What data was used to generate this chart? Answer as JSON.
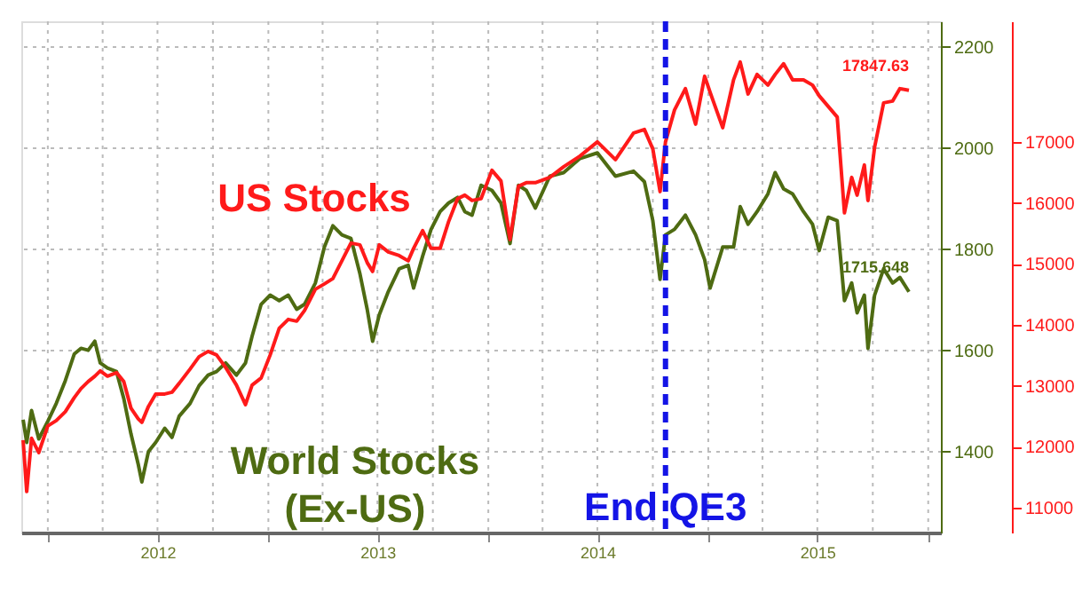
{
  "chart_data": {
    "type": "line",
    "legend": false,
    "grid": true,
    "line_style": "solid",
    "marker": "none",
    "x": [
      "2011-11-21",
      "2011-11-27",
      "2011-12-05",
      "2011-12-17",
      "2012-01-01",
      "2012-01-15",
      "2012-01-30",
      "2012-02-14",
      "2012-02-25",
      "2012-03-08",
      "2012-03-19",
      "2012-03-28",
      "2012-04-09",
      "2012-04-24",
      "2012-05-06",
      "2012-05-18",
      "2012-05-30",
      "2012-06-05",
      "2012-06-16",
      "2012-06-28",
      "2012-07-13",
      "2012-07-25",
      "2012-08-06",
      "2012-08-24",
      "2012-09-08",
      "2012-09-23",
      "2012-10-07",
      "2012-10-22",
      "2012-11-09",
      "2012-11-24",
      "2012-12-05",
      "2012-12-20",
      "2013-01-04",
      "2013-01-19",
      "2013-02-03",
      "2013-02-17",
      "2013-03-02",
      "2013-03-20",
      "2013-04-04",
      "2013-04-18",
      "2013-05-03",
      "2013-05-18",
      "2013-06-02",
      "2013-06-14",
      "2013-06-23",
      "2013-07-04",
      "2013-07-19",
      "2013-08-06",
      "2013-08-21",
      "2013-08-30",
      "2013-09-14",
      "2013-09-28",
      "2013-10-13",
      "2013-10-27",
      "2013-11-11",
      "2013-11-23",
      "2013-12-05",
      "2013-12-20",
      "2014-01-07",
      "2014-01-22",
      "2014-02-06",
      "2014-02-20",
      "2014-03-05",
      "2014-03-20",
      "2014-04-13",
      "2014-05-06",
      "2014-06-02",
      "2014-07-01",
      "2014-07-31",
      "2014-08-30",
      "2014-09-17",
      "2014-10-01",
      "2014-10-13",
      "2014-10-22",
      "2014-11-06",
      "2014-11-24",
      "2014-12-11",
      "2014-12-26",
      "2015-01-04",
      "2015-01-25",
      "2015-02-12",
      "2015-02-23",
      "2015-03-08",
      "2015-03-23",
      "2015-04-10",
      "2015-04-22",
      "2015-05-06",
      "2015-05-21",
      "2015-06-08",
      "2015-06-23",
      "2015-07-04",
      "2015-07-19",
      "2015-08-03",
      "2015-08-15",
      "2015-08-27",
      "2015-09-05",
      "2015-09-17",
      "2015-09-23",
      "2015-10-04",
      "2015-10-19",
      "2015-11-03",
      "2015-11-15",
      "2015-11-30"
    ],
    "series": [
      {
        "name": "World Stocks (Ex-US)",
        "color": "#4e6b12",
        "axis": "y",
        "values": [
          1463,
          1418,
          1481,
          1425,
          1460,
          1495,
          1540,
          1593,
          1604,
          1600,
          1618,
          1575,
          1565,
          1558,
          1505,
          1435,
          1375,
          1340,
          1400,
          1418,
          1446,
          1428,
          1470,
          1495,
          1530,
          1551,
          1558,
          1575,
          1551,
          1575,
          1628,
          1691,
          1709,
          1698,
          1709,
          1681,
          1691,
          1733,
          1804,
          1846,
          1828,
          1821,
          1751,
          1681,
          1618,
          1670,
          1716,
          1761,
          1768,
          1723,
          1786,
          1839,
          1874,
          1891,
          1902,
          1874,
          1867,
          1926,
          1916,
          1891,
          1811,
          1926,
          1916,
          1881,
          1944,
          1951,
          1979,
          1990,
          1944,
          1954,
          1933,
          1856,
          1740,
          1828,
          1839,
          1867,
          1828,
          1779,
          1723,
          1804,
          1804,
          1884,
          1849,
          1874,
          1909,
          1951,
          1919,
          1909,
          1874,
          1849,
          1797,
          1863,
          1856,
          1698,
          1733,
          1674,
          1709,
          1604,
          1709,
          1761,
          1733,
          1744,
          1715.648
        ],
        "value_labels": [
          null,
          null,
          null,
          null,
          null,
          null,
          null,
          null,
          null,
          null,
          null,
          null,
          null,
          null,
          null,
          null,
          null,
          null,
          null,
          null,
          null,
          null,
          null,
          null,
          null,
          null,
          null,
          null,
          null,
          null,
          null,
          null,
          null,
          null,
          null,
          null,
          null,
          null,
          null,
          null,
          null,
          null,
          null,
          null,
          null,
          null,
          null,
          null,
          null,
          null,
          null,
          null,
          null,
          null,
          null,
          null,
          null,
          null,
          null,
          null,
          null,
          null,
          null,
          null,
          null,
          null,
          null,
          null,
          null,
          null,
          null,
          null,
          null,
          null,
          null,
          null,
          null,
          null,
          null,
          null,
          null,
          null,
          null,
          null,
          null,
          null,
          null,
          null,
          null,
          null,
          null,
          null,
          null,
          null,
          null,
          null,
          null,
          null,
          null,
          null,
          null,
          null,
          "1715.648"
        ]
      },
      {
        "name": "US Stocks",
        "color": "#ff1a1a",
        "axis": "y2",
        "values": [
          12107,
          11262,
          12136,
          11903,
          12340,
          12427,
          12573,
          12806,
          12952,
          13068,
          13156,
          13243,
          13156,
          13214,
          13068,
          12631,
          12457,
          12398,
          12660,
          12864,
          12864,
          12893,
          13039,
          13272,
          13476,
          13563,
          13505,
          13301,
          13010,
          12690,
          13010,
          13126,
          13505,
          13942,
          14088,
          14059,
          14234,
          14583,
          14670,
          14758,
          15049,
          15340,
          15311,
          15020,
          14874,
          15311,
          15195,
          15136,
          15049,
          15253,
          15544,
          15253,
          15253,
          15690,
          16069,
          16127,
          16039,
          16069,
          16535,
          16360,
          15399,
          16273,
          16331,
          16331,
          16418,
          16593,
          16768,
          17001,
          16709,
          17146,
          17205,
          16884,
          16185,
          17001,
          17525,
          17875,
          17292,
          18079,
          17816,
          17234,
          18020,
          18312,
          17787,
          18108,
          17933,
          18108,
          18283,
          18020,
          18020,
          17933,
          17758,
          17583,
          17409,
          15836,
          16418,
          16127,
          16622,
          16039,
          16913,
          17642,
          17671,
          17875,
          17847.63
        ],
        "value_labels": [
          null,
          null,
          null,
          null,
          null,
          null,
          null,
          null,
          null,
          null,
          null,
          null,
          null,
          null,
          null,
          null,
          null,
          null,
          null,
          null,
          null,
          null,
          null,
          null,
          null,
          null,
          null,
          null,
          null,
          null,
          null,
          null,
          null,
          null,
          null,
          null,
          null,
          null,
          null,
          null,
          null,
          null,
          null,
          null,
          null,
          null,
          null,
          null,
          null,
          null,
          null,
          null,
          null,
          null,
          null,
          null,
          null,
          null,
          null,
          null,
          null,
          null,
          null,
          null,
          null,
          null,
          null,
          null,
          null,
          null,
          null,
          null,
          null,
          null,
          null,
          null,
          null,
          null,
          null,
          null,
          null,
          null,
          null,
          null,
          null,
          null,
          null,
          null,
          null,
          null,
          null,
          null,
          null,
          null,
          null,
          null,
          null,
          null,
          null,
          null,
          null,
          null,
          "17847.63"
        ]
      }
    ],
    "xlim": [
      "2011-11-18",
      "2016-01-22"
    ],
    "xticks": [
      {
        "value": "2012-01-01",
        "label": null
      },
      {
        "value": "2012-04-01",
        "label": null
      },
      {
        "value": "2012-07-01",
        "label": "2012"
      },
      {
        "value": "2012-10-01",
        "label": null
      },
      {
        "value": "2013-01-01",
        "label": null
      },
      {
        "value": "2013-04-01",
        "label": null
      },
      {
        "value": "2013-07-01",
        "label": "2013"
      },
      {
        "value": "2013-10-01",
        "label": null
      },
      {
        "value": "2014-01-01",
        "label": null
      },
      {
        "value": "2014-04-01",
        "label": null
      },
      {
        "value": "2014-07-01",
        "label": "2014"
      },
      {
        "value": "2014-10-01",
        "label": null
      },
      {
        "value": "2015-01-01",
        "label": null
      },
      {
        "value": "2015-04-01",
        "label": null
      },
      {
        "value": "2015-07-01",
        "label": "2015"
      },
      {
        "value": "2015-10-01",
        "label": null
      },
      {
        "value": "2016-01-01",
        "label": null
      }
    ],
    "ylim": [
      1240,
      2250
    ],
    "yticks": [
      1400,
      1600,
      1800,
      2000,
      2200
    ],
    "y2lim": [
      10590,
      18980
    ],
    "y2ticks": [
      11000,
      12000,
      13000,
      14000,
      15000,
      16000,
      17000
    ],
    "ref_lines": [
      {
        "axis": "x",
        "value": "2014-10-22",
        "label": "End QE3",
        "color": "#1414e6",
        "line_style": "dashed"
      }
    ]
  }
}
